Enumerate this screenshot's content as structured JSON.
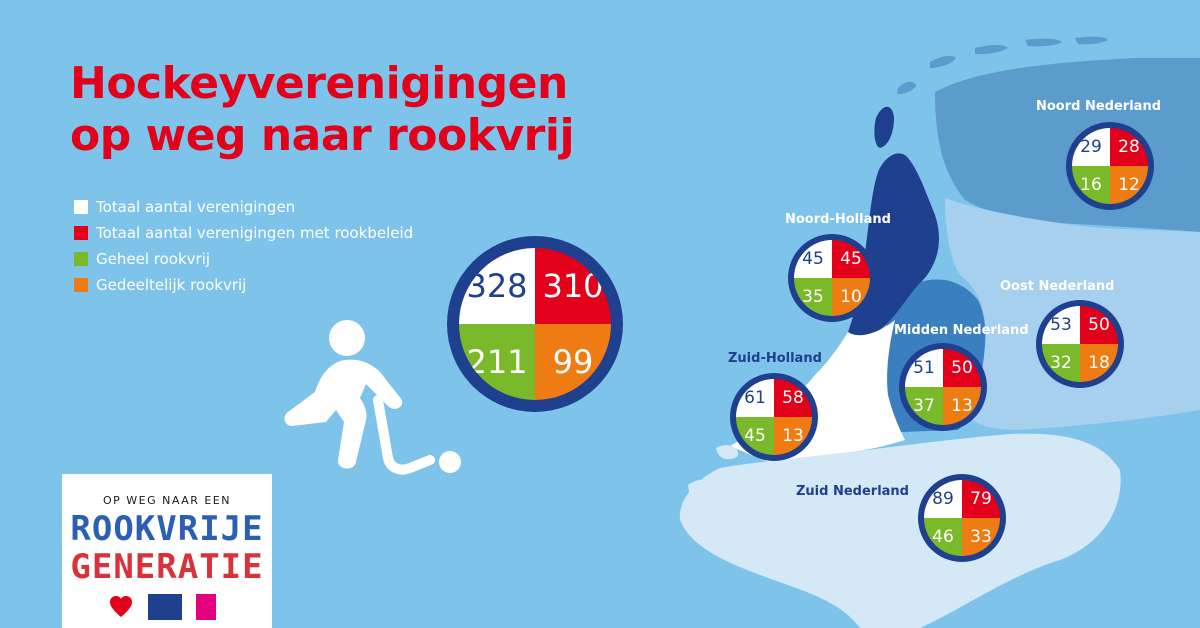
{
  "title": {
    "line1": "Hockeyverenigingen",
    "line2": "op weg naar rookvrij"
  },
  "legend": [
    {
      "label": "Totaal aantal verenigingen",
      "color": "#ffffff"
    },
    {
      "label": "Totaal aantal verenigingen met rookbeleid",
      "color": "#e3001b"
    },
    {
      "label": "Geheel rookvrij",
      "color": "#7ab929"
    },
    {
      "label": "Gedeeltelijk rookvrij",
      "color": "#ef7c12"
    }
  ],
  "total": {
    "totaal": "328",
    "rookbeleid": "310",
    "geheel": "211",
    "gedeeltelijk": "99"
  },
  "regions": {
    "noord_nederland": {
      "name": "Noord Nederland",
      "totaal": "29",
      "rookbeleid": "28",
      "geheel": "16",
      "gedeeltelijk": "12"
    },
    "noord_holland": {
      "name": "Noord-Holland",
      "totaal": "45",
      "rookbeleid": "45",
      "geheel": "35",
      "gedeeltelijk": "10"
    },
    "oost_nederland": {
      "name": "Oost Nederland",
      "totaal": "53",
      "rookbeleid": "50",
      "geheel": "32",
      "gedeeltelijk": "18"
    },
    "midden_nederland": {
      "name": "Midden Nederland",
      "totaal": "51",
      "rookbeleid": "50",
      "geheel": "37",
      "gedeeltelijk": "13"
    },
    "zuid_holland": {
      "name": "Zuid-Holland",
      "totaal": "61",
      "rookbeleid": "58",
      "geheel": "45",
      "gedeeltelijk": "13"
    },
    "zuid_nederland": {
      "name": "Zuid Nederland",
      "totaal": "89",
      "rookbeleid": "79",
      "geheel": "46",
      "gedeeltelijk": "33"
    }
  },
  "colors": {
    "background": "#7ec3ea",
    "title_red": "#e3001b",
    "navy": "#1f3f8f",
    "green": "#7ab929",
    "orange": "#ef7c12",
    "region_noord": "#5b9ccc",
    "region_oost": "#a7cfee",
    "region_noord_holland": "#1f3f8f",
    "region_midden": "#3a7fbf",
    "region_zuid_holland": "#ffffff",
    "region_zuid": "#d4e8f6"
  },
  "icons": {
    "hockey_player": "hockey-player-icon",
    "map": "netherlands-map"
  },
  "logo": {
    "subtitle": "OP WEG NAAR EEN",
    "word1": "ROOKVRIJE",
    "word2": "GENERATIE",
    "partners": [
      "hartstichting-logo",
      "kwf-logo",
      "longfonds-logo"
    ]
  }
}
